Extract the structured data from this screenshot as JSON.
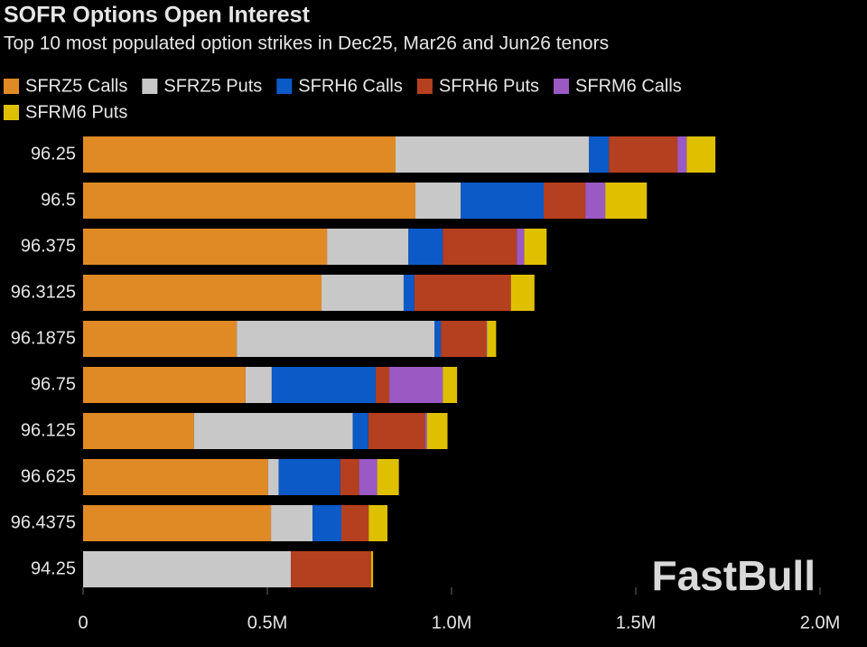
{
  "chart_data": {
    "type": "stacked-bar-horizontal",
    "title": "SOFR Options Open Interest",
    "subtitle": "Top 10 most populated option strikes in Dec25, Mar26 and Jun26 tenors",
    "watermark": "FastBull",
    "categories": [
      "96.25",
      "96.5",
      "96.375",
      "96.3125",
      "96.1875",
      "96.75",
      "96.125",
      "96.625",
      "96.4375",
      "94.25"
    ],
    "series": [
      {
        "name": "SFRZ5 Calls",
        "color": "#e08a26",
        "values": [
          848000,
          902000,
          662000,
          647000,
          417000,
          441000,
          301000,
          502000,
          510000,
          0
        ]
      },
      {
        "name": "SFRZ5 Puts",
        "color": "#c8c8c8",
        "values": [
          525000,
          123000,
          221000,
          223000,
          537000,
          71000,
          431000,
          29000,
          113000,
          564000
        ]
      },
      {
        "name": "SFRH6 Calls",
        "color": "#0b5ac8",
        "values": [
          54000,
          225000,
          93000,
          29000,
          17000,
          282000,
          42000,
          167000,
          78000,
          0
        ]
      },
      {
        "name": "SFRH6 Puts",
        "color": "#b5401f",
        "values": [
          186000,
          113000,
          201000,
          262000,
          123000,
          37000,
          154000,
          51000,
          74000,
          218000
        ]
      },
      {
        "name": "SFRM6 Calls",
        "color": "#9b59c4",
        "values": [
          25000,
          54000,
          20000,
          0,
          2000,
          145000,
          5000,
          49000,
          0,
          0
        ]
      },
      {
        "name": "SFRM6 Puts",
        "color": "#dfc000",
        "values": [
          78000,
          113000,
          61000,
          64000,
          25000,
          39000,
          56000,
          59000,
          51000,
          5000
        ]
      }
    ],
    "xlim": [
      0,
      2000000
    ],
    "xticks": [
      0,
      {
        "value": 500000,
        "label": "0.5M"
      },
      {
        "value": 1000000,
        "label": "1.0M"
      },
      {
        "value": 1500000,
        "label": "1.5M"
      },
      {
        "value": 2000000,
        "label": "2.0M"
      }
    ]
  }
}
